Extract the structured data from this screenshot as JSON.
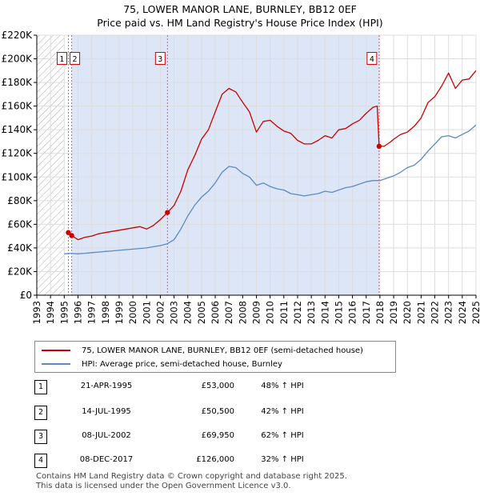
{
  "header": {
    "title_line1": "75, LOWER MANOR LANE, BURNLEY, BB12 0EF",
    "title_line2": "Price paid vs. HM Land Registry's House Price Index (HPI)"
  },
  "legend": {
    "property_label": "75, LOWER MANOR LANE, BURNLEY, BB12 0EF (semi-detached house)",
    "hpi_label": "HPI: Average price, semi-detached house, Burnley"
  },
  "transactions": [
    {
      "num": "1",
      "date": "21-APR-1995",
      "price": "£53,000",
      "hpi": "48% ↑ HPI"
    },
    {
      "num": "2",
      "date": "14-JUL-1995",
      "price": "£50,500",
      "hpi": "42% ↑ HPI"
    },
    {
      "num": "3",
      "date": "08-JUL-2002",
      "price": "£69,950",
      "hpi": "62% ↑ HPI"
    },
    {
      "num": "4",
      "date": "08-DEC-2017",
      "price": "£126,000",
      "hpi": "32% ↑ HPI"
    }
  ],
  "footer": {
    "line1": "Contains HM Land Registry data © Crown copyright and database right 2025.",
    "line2": "This data is licensed under the Open Government Licence v3.0."
  },
  "colors": {
    "property": "#cc0000",
    "hpi": "#5b8ac6",
    "shade": "#dde6f6",
    "hatch": "#aaaaaa",
    "grid": "#dddddd",
    "vline": "#e06060"
  },
  "chart_data": {
    "type": "line",
    "title": "75, LOWER MANOR LANE, BURNLEY, BB12 0EF",
    "subtitle": "Price paid vs. HM Land Registry's House Price Index (HPI)",
    "xlabel": "",
    "ylabel": "",
    "xlim": [
      1993,
      2025
    ],
    "ylim": [
      0,
      220000
    ],
    "x_ticks": [
      1993,
      1994,
      1995,
      1996,
      1997,
      1998,
      1999,
      2000,
      2001,
      2002,
      2003,
      2004,
      2005,
      2006,
      2007,
      2008,
      2009,
      2010,
      2011,
      2012,
      2013,
      2014,
      2015,
      2016,
      2017,
      2018,
      2019,
      2020,
      2021,
      2022,
      2023,
      2024,
      2025
    ],
    "y_ticks": [
      0,
      20000,
      40000,
      60000,
      80000,
      100000,
      120000,
      140000,
      160000,
      180000,
      200000,
      220000
    ],
    "y_tick_labels": [
      "£0",
      "£20K",
      "£40K",
      "£60K",
      "£80K",
      "£100K",
      "£120K",
      "£140K",
      "£160K",
      "£180K",
      "£200K",
      "£220K"
    ],
    "grid": true,
    "shaded_ranges": [
      {
        "kind": "hatch",
        "x": [
          1993,
          1995.0
        ]
      },
      {
        "kind": "shade",
        "x": [
          1995.54,
          2002.52
        ]
      },
      {
        "kind": "shade",
        "x": [
          2002.52,
          2017.94
        ]
      }
    ],
    "markers": [
      {
        "label": "1",
        "x": 1995.3,
        "y": 53000
      },
      {
        "label": "2",
        "x": 1995.54,
        "y": 50500
      },
      {
        "label": "3",
        "x": 2002.52,
        "y": 69950
      },
      {
        "label": "4",
        "x": 2017.94,
        "y": 126000
      }
    ],
    "series": [
      {
        "name": "75, LOWER MANOR LANE, BURNLEY, BB12 0EF (semi-detached house)",
        "x": [
          1995.3,
          1995.54,
          1996,
          1996.5,
          1997,
          1997.5,
          1998,
          1998.5,
          1999,
          1999.5,
          2000,
          2000.5,
          2001,
          2001.5,
          2002,
          2002.52,
          2003,
          2003.5,
          2004,
          2004.5,
          2005,
          2005.5,
          2006,
          2006.5,
          2007,
          2007.5,
          2007.9,
          2008.5,
          2009,
          2009.5,
          2010,
          2010.5,
          2011,
          2011.5,
          2012,
          2012.5,
          2013,
          2013.5,
          2014,
          2014.5,
          2015,
          2015.5,
          2016,
          2016.5,
          2017,
          2017.5,
          2017.8,
          2017.94,
          2018.3,
          2018.8,
          2019,
          2019.5,
          2020,
          2020.5,
          2021,
          2021.5,
          2022,
          2022.5,
          2023,
          2023.5,
          2024,
          2024.5,
          2025
        ],
        "y": [
          53000,
          50500,
          47000,
          49000,
          50000,
          52000,
          53000,
          54000,
          55000,
          56000,
          57000,
          58000,
          56000,
          59000,
          64000,
          69950,
          76000,
          88000,
          106000,
          118000,
          132000,
          140000,
          155000,
          170000,
          175000,
          172000,
          165000,
          155000,
          138000,
          147000,
          148000,
          143000,
          139000,
          137000,
          131000,
          128000,
          128000,
          131000,
          135000,
          133000,
          140000,
          141000,
          145000,
          148000,
          154000,
          159000,
          160000,
          126000,
          126000,
          130000,
          132000,
          136000,
          138000,
          143000,
          150000,
          163000,
          168000,
          177000,
          188000,
          175000,
          182000,
          183000,
          190000
        ]
      },
      {
        "name": "HPI: Average price, semi-detached house, Burnley",
        "x": [
          1995.0,
          1995.5,
          1996,
          1996.5,
          1997,
          1997.5,
          1998,
          1998.5,
          1999,
          1999.5,
          2000,
          2000.5,
          2001,
          2001.5,
          2002,
          2002.5,
          2003,
          2003.5,
          2004,
          2004.5,
          2005,
          2005.5,
          2006,
          2006.5,
          2007,
          2007.5,
          2008,
          2008.5,
          2009,
          2009.5,
          2010,
          2010.5,
          2011,
          2011.5,
          2012,
          2012.5,
          2013,
          2013.5,
          2014,
          2014.5,
          2015,
          2015.5,
          2016,
          2016.5,
          2017,
          2017.5,
          2018,
          2018.5,
          2019,
          2019.5,
          2020,
          2020.5,
          2021,
          2021.5,
          2022,
          2022.5,
          2023,
          2023.5,
          2024,
          2024.5,
          2025
        ],
        "y": [
          35000,
          35500,
          35000,
          35500,
          36000,
          36500,
          37000,
          37500,
          38000,
          38500,
          39000,
          39500,
          40000,
          41000,
          42000,
          43500,
          47000,
          56000,
          67000,
          76000,
          83000,
          88000,
          95000,
          104000,
          109000,
          108000,
          103000,
          100000,
          93000,
          95000,
          92000,
          90000,
          89000,
          86000,
          85000,
          84000,
          85000,
          86000,
          88000,
          87000,
          89000,
          91000,
          92000,
          94000,
          96000,
          97000,
          97000,
          99000,
          101000,
          104000,
          108000,
          110000,
          115000,
          122000,
          128000,
          134000,
          135000,
          133000,
          136000,
          139000,
          144000
        ]
      }
    ]
  }
}
